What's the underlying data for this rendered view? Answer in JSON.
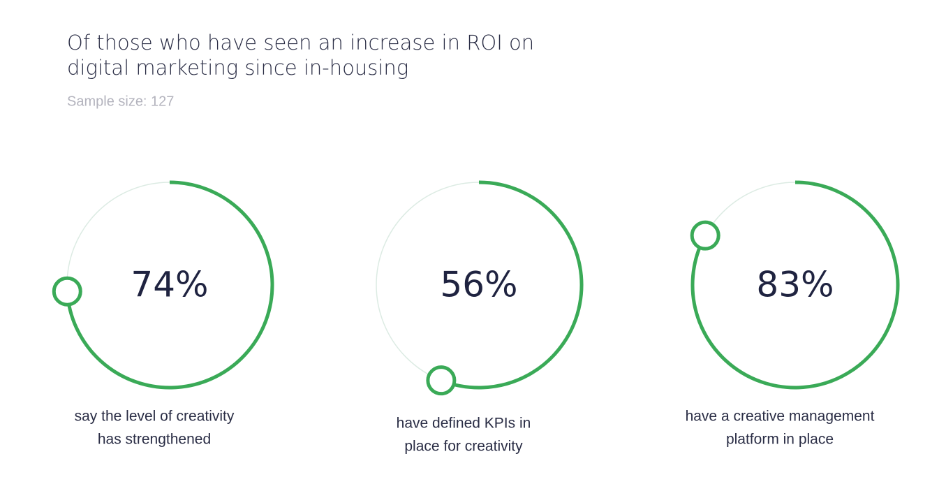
{
  "title": [
    "Of those who have seen an increase in ROI on",
    "digital marketing since in-housing"
  ],
  "subtitle": "Sample size: 127",
  "chart_data": [
    {
      "type": "gauge",
      "value": 74,
      "value_label": "74%",
      "ylim": [
        0,
        100
      ],
      "color": "#3aaa57",
      "track_color": "#dcebe3",
      "label": [
        "say the level of creativity",
        "has strengthened"
      ]
    },
    {
      "type": "gauge",
      "value": 56,
      "value_label": "56%",
      "ylim": [
        0,
        100
      ],
      "color": "#3aaa57",
      "track_color": "#dcebe3",
      "label": [
        "have defined KPIs in",
        "place for creativity"
      ]
    },
    {
      "type": "gauge",
      "value": 83,
      "value_label": "83%",
      "ylim": [
        0,
        100
      ],
      "color": "#3aaa57",
      "track_color": "#dcebe3",
      "label": [
        "have a creative management",
        "platform in place"
      ]
    }
  ]
}
